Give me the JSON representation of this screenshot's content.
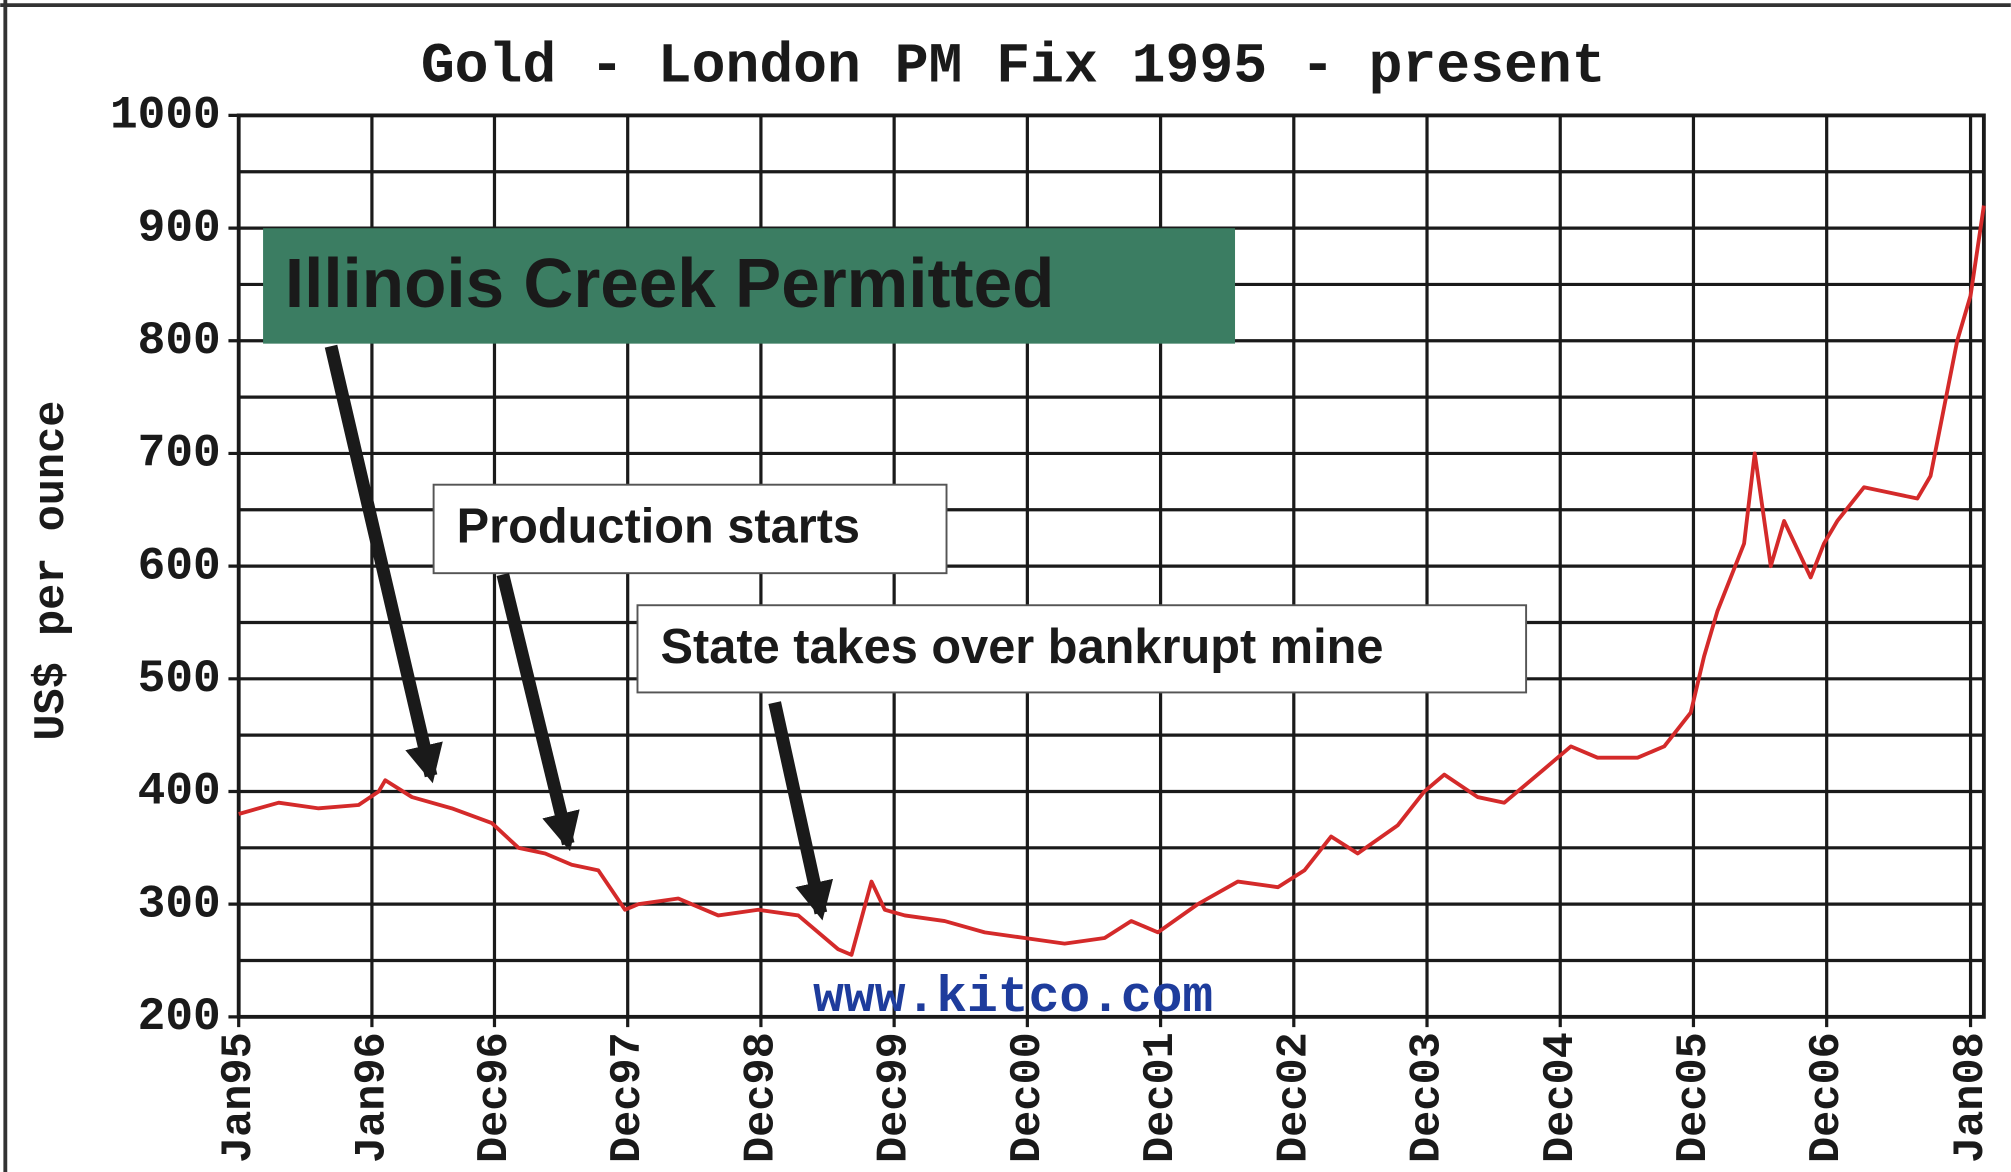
{
  "chart_data": {
    "type": "line",
    "title": "Gold - London PM Fix 1995 - present",
    "ylabel": "US$ per ounce",
    "color": "#d42a2a",
    "x": [
      1995.0,
      1995.3,
      1995.6,
      1995.9,
      1996.05,
      1996.1,
      1996.3,
      1996.6,
      1996.9,
      1997.1,
      1997.3,
      1997.5,
      1997.7,
      1997.9,
      1998.0,
      1998.3,
      1998.6,
      1998.9,
      1999.2,
      1999.5,
      1999.6,
      1999.75,
      1999.85,
      2000.0,
      2000.3,
      2000.6,
      2000.9,
      2001.2,
      2001.5,
      2001.7,
      2001.9,
      2002.2,
      2002.5,
      2002.8,
      2003.0,
      2003.2,
      2003.4,
      2003.7,
      2003.9,
      2004.05,
      2004.3,
      2004.5,
      2004.8,
      2005.0,
      2005.2,
      2005.5,
      2005.7,
      2005.9,
      2006.0,
      2006.1,
      2006.3,
      2006.38,
      2006.5,
      2006.6,
      2006.8,
      2006.9,
      2007.0,
      2007.2,
      2007.4,
      2007.6,
      2007.7,
      2007.8,
      2007.9,
      2008.0,
      2008.1
    ],
    "values": [
      380,
      390,
      385,
      388,
      400,
      410,
      395,
      385,
      372,
      350,
      345,
      335,
      330,
      295,
      300,
      305,
      290,
      295,
      290,
      260,
      255,
      320,
      295,
      290,
      285,
      275,
      270,
      265,
      270,
      285,
      275,
      300,
      320,
      315,
      330,
      360,
      345,
      370,
      400,
      415,
      395,
      390,
      420,
      440,
      430,
      430,
      440,
      470,
      520,
      560,
      620,
      700,
      600,
      640,
      590,
      620,
      640,
      670,
      665,
      660,
      680,
      740,
      800,
      840,
      920
    ],
    "xlim": [
      1995,
      2008.1
    ],
    "xticks": [
      {
        "value": 1995.0,
        "label": "Jan95"
      },
      {
        "value": 1996.0,
        "label": "Jan96"
      },
      {
        "value": 1996.92,
        "label": "Dec96"
      },
      {
        "value": 1997.92,
        "label": "Dec97"
      },
      {
        "value": 1998.92,
        "label": "Dec98"
      },
      {
        "value": 1999.92,
        "label": "Dec99"
      },
      {
        "value": 2000.92,
        "label": "Dec00"
      },
      {
        "value": 2001.92,
        "label": "Dec01"
      },
      {
        "value": 2002.92,
        "label": "Dec02"
      },
      {
        "value": 2003.92,
        "label": "Dec03"
      },
      {
        "value": 2004.92,
        "label": "Dec04"
      },
      {
        "value": 2005.92,
        "label": "Dec05"
      },
      {
        "value": 2006.92,
        "label": "Dec06"
      },
      {
        "value": 2008.0,
        "label": "Jan08"
      }
    ],
    "ylim": [
      200,
      1000
    ],
    "yticks": [
      200,
      300,
      400,
      500,
      600,
      700,
      800,
      900,
      1000
    ],
    "yticks_minor": [
      250,
      350,
      450,
      550,
      650,
      750,
      850,
      950
    ],
    "grid": true,
    "annotations": [
      "Illinois Creek Permitted",
      "Production starts",
      "State takes over bankrupt mine"
    ],
    "watermark": "www.kitco.com"
  }
}
